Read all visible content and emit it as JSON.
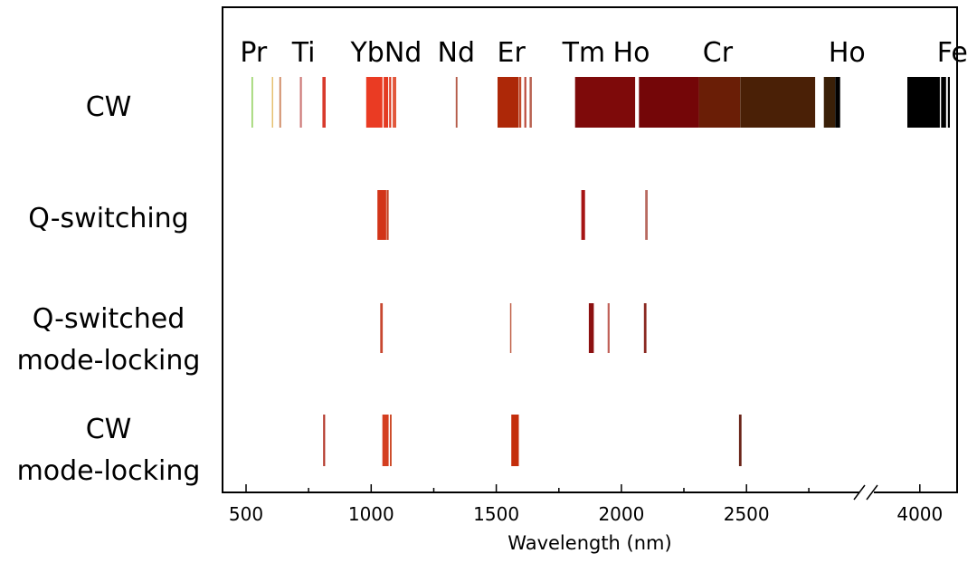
{
  "chart_data": {
    "type": "band",
    "xlabel": "Wavelength (nm)",
    "x_ticks": [
      {
        "value": 500,
        "label": "500"
      },
      {
        "value": 1000,
        "label": "1000"
      },
      {
        "value": 1500,
        "label": "1500"
      },
      {
        "value": 2000,
        "label": "2000"
      },
      {
        "value": 2500,
        "label": "2500"
      },
      {
        "value": 4000,
        "label": "4000"
      }
    ],
    "axis_break": "between 2500 and 4000 nm",
    "element_labels": [
      {
        "text": "Pr",
        "wavelength": 530
      },
      {
        "text": "Ti",
        "wavelength": 730
      },
      {
        "text": "YbNd",
        "wavelength": 1060
      },
      {
        "text": "Nd",
        "wavelength": 1340
      },
      {
        "text": "Er",
        "wavelength": 1560
      },
      {
        "text": "Tm",
        "wavelength": 1850
      },
      {
        "text": "Ho",
        "wavelength": 2040
      },
      {
        "text": "Cr",
        "wavelength": 2385
      },
      {
        "text": "Ho",
        "wavelength": 2920
      },
      {
        "text": "Fe",
        "wavelength": 4130
      }
    ],
    "rows": [
      {
        "label_lines": [
          "CW"
        ],
        "bands": [
          {
            "start": 522,
            "end": 526,
            "color": "#8fd05a"
          },
          {
            "start": 603,
            "end": 607,
            "color": "#e6c070"
          },
          {
            "start": 633,
            "end": 640,
            "color": "#cf8a64"
          },
          {
            "start": 715,
            "end": 723,
            "color": "#cd7a78"
          },
          {
            "start": 805,
            "end": 818,
            "color": "#d83a2c"
          },
          {
            "start": 980,
            "end": 1045,
            "color": "#ea3b23"
          },
          {
            "start": 1050,
            "end": 1068,
            "color": "#e43a22"
          },
          {
            "start": 1072,
            "end": 1080,
            "color": "#dd3b22"
          },
          {
            "start": 1086,
            "end": 1100,
            "color": "#e2583c"
          },
          {
            "start": 1338,
            "end": 1345,
            "color": "#b45a48"
          },
          {
            "start": 1505,
            "end": 1590,
            "color": "#ad2808"
          },
          {
            "start": 1592,
            "end": 1600,
            "color": "#c24a2a"
          },
          {
            "start": 1612,
            "end": 1620,
            "color": "#bc4a3a"
          },
          {
            "start": 1633,
            "end": 1642,
            "color": "#b86050"
          },
          {
            "start": 1815,
            "end": 2055,
            "color": "#7e0a0a"
          },
          {
            "start": 2070,
            "end": 2310,
            "color": "#740608"
          },
          {
            "start": 2310,
            "end": 2475,
            "color": "#6a1e06"
          },
          {
            "start": 2475,
            "end": 2775,
            "color": "#4a2006"
          },
          {
            "start": 2810,
            "end": 2855,
            "color": "#3a2008"
          },
          {
            "start": 2855,
            "end": 2875,
            "color": "#000000"
          },
          {
            "start": 3950,
            "end": 4080,
            "color": "#000000"
          },
          {
            "start": 4085,
            "end": 4105,
            "color": "#000000"
          },
          {
            "start": 4112,
            "end": 4120,
            "color": "#000000"
          }
        ]
      },
      {
        "label_lines": [
          "Q-switching"
        ],
        "bands": [
          {
            "start": 1025,
            "end": 1060,
            "color": "#d23418"
          },
          {
            "start": 1062,
            "end": 1070,
            "color": "#c54020"
          },
          {
            "start": 1840,
            "end": 1855,
            "color": "#a61414"
          },
          {
            "start": 2095,
            "end": 2105,
            "color": "#b86a60"
          }
        ]
      },
      {
        "label_lines": [
          "Q-switched",
          "mode-locking"
        ],
        "bands": [
          {
            "start": 1036,
            "end": 1046,
            "color": "#c84830"
          },
          {
            "start": 1555,
            "end": 1560,
            "color": "#c06048"
          },
          {
            "start": 1870,
            "end": 1890,
            "color": "#8c1010"
          },
          {
            "start": 1945,
            "end": 1953,
            "color": "#c06058"
          },
          {
            "start": 2090,
            "end": 2100,
            "color": "#8a2820"
          }
        ]
      },
      {
        "label_lines": [
          "CW",
          "mode-locking"
        ],
        "bands": [
          {
            "start": 808,
            "end": 816,
            "color": "#b4382a"
          },
          {
            "start": 1045,
            "end": 1070,
            "color": "#d43e20"
          },
          {
            "start": 1075,
            "end": 1082,
            "color": "#cc4a28"
          },
          {
            "start": 1560,
            "end": 1590,
            "color": "#c42e0c"
          },
          {
            "start": 2470,
            "end": 2480,
            "color": "#6a2418"
          }
        ]
      }
    ]
  }
}
